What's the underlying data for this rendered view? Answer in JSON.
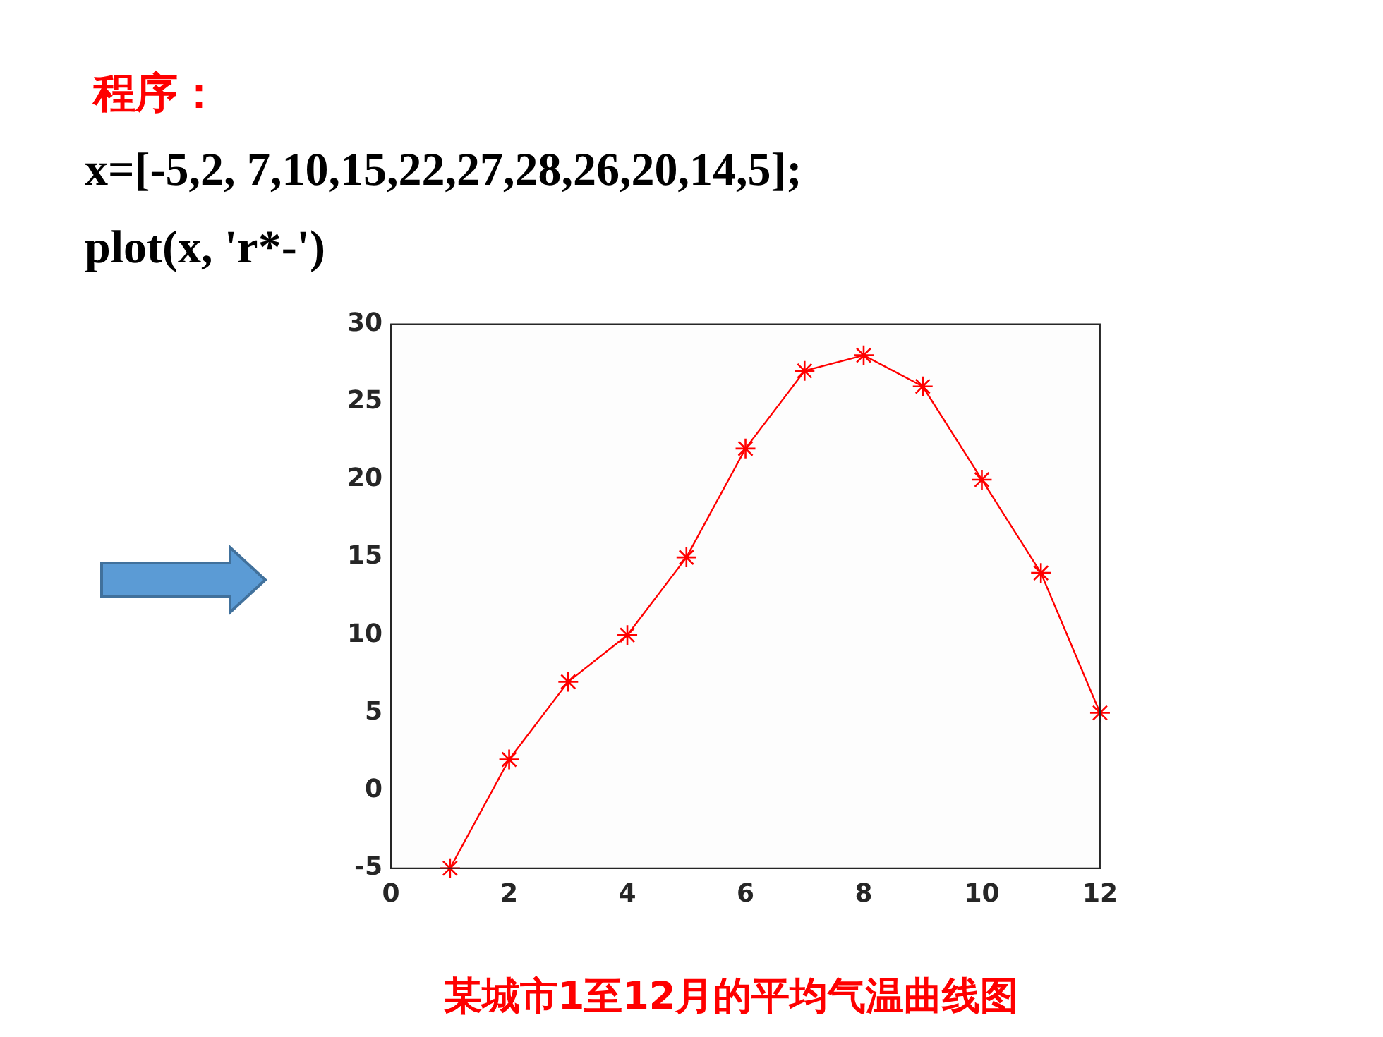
{
  "chart_data": {
    "type": "line",
    "title": "程序：",
    "annotations": [
      "x=[-5,2, 7,10,15,22,27,28,26,20,14,5];",
      "plot(x, 'r*-')",
      "某城市1至12月的平均气温曲线图"
    ],
    "x": [
      1,
      2,
      3,
      4,
      5,
      6,
      7,
      8,
      9,
      10,
      11,
      12
    ],
    "series": [
      {
        "color": "#ff0000",
        "values": [
          -5,
          2,
          7,
          10,
          15,
          22,
          27,
          28,
          26,
          20,
          14,
          5
        ]
      }
    ],
    "xlim": [
      0,
      12
    ],
    "xticks": [
      0,
      2,
      4,
      6,
      8,
      10,
      12
    ],
    "ylim": [
      -5,
      30
    ],
    "yticks": [
      -5,
      0,
      5,
      10,
      15,
      20,
      25,
      30
    ],
    "grid": false,
    "legend": false,
    "marker": "cross",
    "line_style": "solid"
  }
}
